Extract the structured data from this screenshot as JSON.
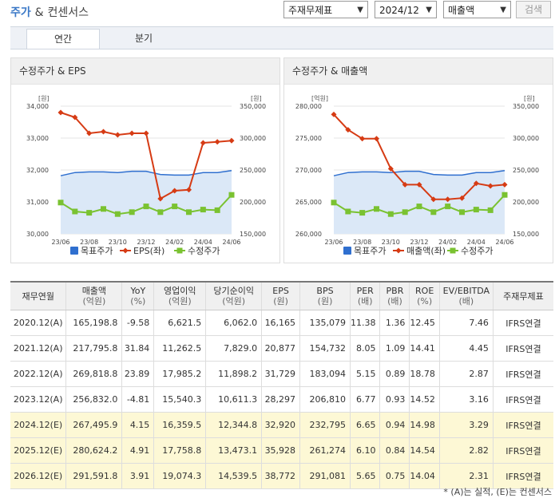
{
  "header": {
    "title": "주가",
    "amp": "&",
    "subtitle": "컨센서스"
  },
  "controls": {
    "basis": "주재무제표",
    "period": "2024/12",
    "metric": "매출액",
    "search_label": "검색"
  },
  "tabs": [
    {
      "label": "연간"
    },
    {
      "label": "분기"
    }
  ],
  "colors": {
    "accent": "#3a78c7",
    "target": "#2f6fcf",
    "eps": "#d63b14",
    "price": "#7ac231",
    "estimate_bg": "#fdf8d5"
  },
  "chart_data": [
    {
      "type": "line",
      "title": "수정주가 & EPS",
      "left_unit": "[원]",
      "right_unit": "[원]",
      "x": [
        "23/06",
        "23/07",
        "23/08",
        "23/09",
        "23/10",
        "23/11",
        "23/12",
        "24/01",
        "24/02",
        "24/03",
        "24/04",
        "24/05",
        "24/06"
      ],
      "x_ticks": [
        "23/06",
        "23/08",
        "23/10",
        "23/12",
        "24/02",
        "24/04",
        "24/06"
      ],
      "left_ylim": [
        30000,
        34000
      ],
      "left_ticks": [
        "34,000",
        "33,000",
        "32,000",
        "31,000",
        "30,000"
      ],
      "right_ylim": [
        150000,
        350000
      ],
      "right_ticks": [
        "350,000",
        "300,000",
        "250,000",
        "200,000",
        "150,000"
      ],
      "series": [
        {
          "name": "목표주가",
          "axis": "right",
          "style": "area",
          "values": [
            241000,
            246000,
            247000,
            247000,
            246000,
            248000,
            248000,
            243000,
            242000,
            242000,
            246000,
            246000,
            249000
          ]
        },
        {
          "name": "EPS(좌)",
          "axis": "left",
          "style": "line",
          "values": [
            33800,
            33650,
            33150,
            33200,
            33100,
            33150,
            33150,
            31100,
            31350,
            31380,
            32850,
            32880,
            32920
          ]
        },
        {
          "name": "수정주가",
          "axis": "right",
          "style": "line",
          "values": [
            199000,
            185000,
            183000,
            189000,
            181000,
            184000,
            193000,
            184000,
            193000,
            184000,
            188000,
            187000,
            211000
          ]
        }
      ]
    },
    {
      "type": "line",
      "title": "수정주가 & 매출액",
      "left_unit": "[억원]",
      "right_unit": "[원]",
      "x": [
        "23/06",
        "23/07",
        "23/08",
        "23/09",
        "23/10",
        "23/11",
        "23/12",
        "24/01",
        "24/02",
        "24/03",
        "24/04",
        "24/05",
        "24/06"
      ],
      "x_ticks": [
        "23/06",
        "23/08",
        "23/10",
        "23/12",
        "24/02",
        "24/04",
        "24/06"
      ],
      "left_ylim": [
        260000,
        280000
      ],
      "left_ticks": [
        "280,000",
        "275,000",
        "270,000",
        "265,000",
        "260,000"
      ],
      "right_ylim": [
        150000,
        350000
      ],
      "right_ticks": [
        "350,000",
        "300,000",
        "250,000",
        "200,000",
        "150,000"
      ],
      "series": [
        {
          "name": "목표주가",
          "axis": "right",
          "style": "area",
          "values": [
            241000,
            246000,
            247000,
            247000,
            246000,
            248000,
            248000,
            243000,
            242000,
            242000,
            246000,
            246000,
            249000
          ]
        },
        {
          "name": "매출액(좌)",
          "axis": "left",
          "style": "line",
          "values": [
            278700,
            276300,
            274900,
            274900,
            270200,
            267700,
            267700,
            265400,
            265400,
            265600,
            267900,
            267500,
            267700
          ]
        },
        {
          "name": "수정주가",
          "axis": "right",
          "style": "line",
          "values": [
            199000,
            185000,
            183000,
            189000,
            181000,
            184000,
            193000,
            184000,
            193000,
            184000,
            188000,
            187000,
            211000
          ]
        }
      ]
    }
  ],
  "table": {
    "headers": [
      {
        "label": "재무연월",
        "unit": ""
      },
      {
        "label": "매출액",
        "unit": "(억원)"
      },
      {
        "label": "YoY",
        "unit": "(%)"
      },
      {
        "label": "영업이익",
        "unit": "(억원)"
      },
      {
        "label": "당기순이익",
        "unit": "(억원)"
      },
      {
        "label": "EPS",
        "unit": "(원)"
      },
      {
        "label": "BPS",
        "unit": "(원)"
      },
      {
        "label": "PER",
        "unit": "(배)"
      },
      {
        "label": "PBR",
        "unit": "(배)"
      },
      {
        "label": "ROE",
        "unit": "(%)"
      },
      {
        "label": "EV/EBITDA",
        "unit": "(배)"
      },
      {
        "label": "주재무제표",
        "unit": ""
      }
    ],
    "rows": [
      [
        "2020.12(A)",
        "165,198.8",
        "-9.58",
        "6,621.5",
        "6,062.0",
        "16,165",
        "135,079",
        "11.38",
        "1.36",
        "12.45",
        "7.46",
        "IFRS연결"
      ],
      [
        "2021.12(A)",
        "217,795.8",
        "31.84",
        "11,262.5",
        "7,829.0",
        "20,877",
        "154,732",
        "8.05",
        "1.09",
        "14.41",
        "4.45",
        "IFRS연결"
      ],
      [
        "2022.12(A)",
        "269,818.8",
        "23.89",
        "17,985.2",
        "11,898.2",
        "31,729",
        "183,094",
        "5.15",
        "0.89",
        "18.78",
        "2.87",
        "IFRS연결"
      ],
      [
        "2023.12(A)",
        "256,832.0",
        "-4.81",
        "15,540.3",
        "10,611.3",
        "28,297",
        "206,810",
        "6.77",
        "0.93",
        "14.52",
        "3.16",
        "IFRS연결"
      ],
      [
        "2024.12(E)",
        "267,495.9",
        "4.15",
        "16,359.5",
        "12,344.8",
        "32,920",
        "232,795",
        "6.65",
        "0.94",
        "14.98",
        "3.29",
        "IFRS연결"
      ],
      [
        "2025.12(E)",
        "280,624.2",
        "4.91",
        "17,758.8",
        "13,473.1",
        "35,928",
        "261,274",
        "6.10",
        "0.84",
        "14.54",
        "2.82",
        "IFRS연결"
      ],
      [
        "2026.12(E)",
        "291,591.8",
        "3.91",
        "19,074.3",
        "14,539.5",
        "38,772",
        "291,081",
        "5.65",
        "0.75",
        "14.04",
        "2.31",
        "IFRS연결"
      ]
    ]
  },
  "footnote": "* (A)는 실적, (E)는 컨센서스"
}
